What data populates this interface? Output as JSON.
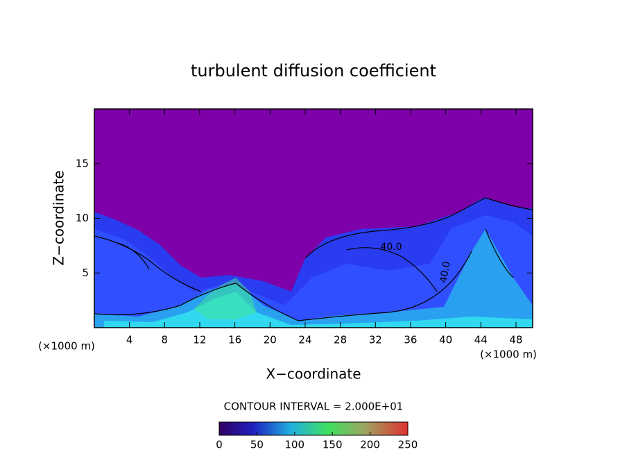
{
  "chart_data": {
    "type": "contour",
    "title": "turbulent diffusion coefficient",
    "x_label": "X−coordinate",
    "y_label": "Z−coordinate",
    "x_unit_labels": [
      "(×1000 m)",
      "(×1000 m)"
    ],
    "xlim": [
      0,
      49.9
    ],
    "xticks": [
      4,
      8,
      12,
      16,
      20,
      24,
      28,
      32,
      36,
      40,
      44,
      48
    ],
    "ylim": [
      0,
      20
    ],
    "yticks": [
      5,
      10,
      15
    ],
    "contour_labels": [
      "40.0",
      "40.0"
    ],
    "contour_interval_label": "CONTOUR INTERVAL = 2.000E+01",
    "colorbar": {
      "lim": [
        0,
        250
      ],
      "ticks": [
        0,
        50,
        100,
        150,
        200,
        250
      ]
    }
  }
}
